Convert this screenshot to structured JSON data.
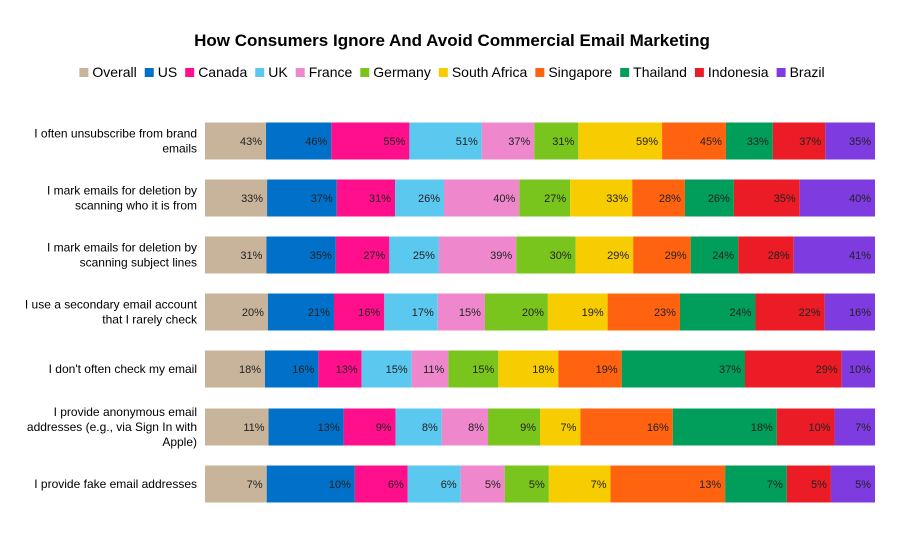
{
  "chart_data": {
    "type": "bar",
    "stacked": "100%",
    "orientation": "horizontal",
    "title": "How Consumers Ignore And Avoid Commercial Email Marketing",
    "legend_position": "top",
    "grid": false,
    "categories": [
      "I often unsubscribe from brand emails",
      "I mark emails for deletion by scanning who it is from",
      "I mark emails for deletion by scanning subject lines",
      "I use a secondary email account that I rarely check",
      "I don't often check my email",
      "I provide anonymous email addresses (e.g., via Sign In with Apple)",
      "I provide fake email addresses"
    ],
    "series": [
      {
        "name": "Overall",
        "color": "#c8b49a",
        "values": [
          43,
          33,
          31,
          20,
          18,
          11,
          7
        ]
      },
      {
        "name": "US",
        "color": "#0070c9",
        "values": [
          46,
          37,
          35,
          21,
          16,
          13,
          10
        ]
      },
      {
        "name": "Canada",
        "color": "#ff0f8c",
        "values": [
          55,
          31,
          27,
          16,
          13,
          9,
          6
        ]
      },
      {
        "name": "UK",
        "color": "#5bc8ef",
        "values": [
          51,
          26,
          25,
          17,
          15,
          8,
          6
        ]
      },
      {
        "name": "France",
        "color": "#ef87cc",
        "values": [
          37,
          40,
          39,
          15,
          11,
          8,
          5
        ]
      },
      {
        "name": "Germany",
        "color": "#7ac51d",
        "values": [
          31,
          27,
          30,
          20,
          15,
          9,
          5
        ]
      },
      {
        "name": "South Africa",
        "color": "#f7cc00",
        "values": [
          59,
          33,
          29,
          19,
          18,
          7,
          7
        ]
      },
      {
        "name": "Singapore",
        "color": "#ff6310",
        "values": [
          45,
          28,
          29,
          23,
          19,
          16,
          13
        ]
      },
      {
        "name": "Thailand",
        "color": "#009e5a",
        "values": [
          33,
          26,
          24,
          24,
          37,
          18,
          7
        ]
      },
      {
        "name": "Indonesia",
        "color": "#ec1c26",
        "values": [
          37,
          35,
          28,
          22,
          29,
          10,
          5
        ]
      },
      {
        "name": "Brazil",
        "color": "#7e3be0",
        "values": [
          35,
          40,
          41,
          16,
          10,
          7,
          5
        ]
      }
    ]
  },
  "category_lines": [
    [
      "I often unsubscribe from brand",
      "emails"
    ],
    [
      "I mark emails for deletion by",
      "scanning who it is from"
    ],
    [
      "I mark emails for deletion by",
      "scanning subject lines"
    ],
    [
      "I use a secondary email account",
      "that I rarely check"
    ],
    [
      "I don't often check my email"
    ],
    [
      "I provide anonymous email",
      "addresses (e.g., via Sign In with",
      "Apple)"
    ],
    [
      "I provide fake email addresses"
    ]
  ]
}
